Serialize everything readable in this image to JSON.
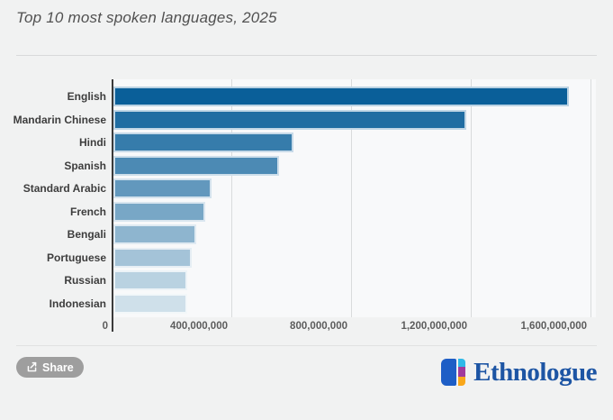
{
  "header": {
    "title": "Top 10 most spoken languages, 2025"
  },
  "share": {
    "label": "Share",
    "icon": "share-export-icon",
    "background": "#9e9e9e"
  },
  "brand": {
    "name": "Ethnologue",
    "wordmark_color": "#1d55a4",
    "icon": "ethnologue-book-icon",
    "icon_colors": {
      "book_blue": "#1e5ec6",
      "cyan": "#2fb9e8",
      "purple": "#a13a9c",
      "yellow": "#f9a71b"
    }
  },
  "chart_data": {
    "type": "bar",
    "orientation": "horizontal",
    "title": "Top 10 most spoken languages, 2025",
    "xlabel": "",
    "ylabel": "",
    "legend": false,
    "grid": true,
    "xlim": [
      0,
      1617000000
    ],
    "categories": [
      "English",
      "Mandarin Chinese",
      "Hindi",
      "Spanish",
      "Standard Arabic",
      "French",
      "Bengali",
      "Portuguese",
      "Russian",
      "Indonesian"
    ],
    "values": [
      1528000000,
      1184000000,
      609000000,
      558000000,
      335000000,
      312000000,
      284000000,
      267000000,
      253000000,
      252000000
    ],
    "bar_colors": [
      "#0a5f99",
      "#206da2",
      "#367cab",
      "#4c8ab4",
      "#6298bd",
      "#78a7c6",
      "#8eb5cf",
      "#a4c3d8",
      "#b9d2e1",
      "#cfe0ea"
    ],
    "x_ticks": [
      {
        "label": "0",
        "value": 0
      },
      {
        "label": "400,000,000",
        "value": 400000000
      },
      {
        "label": "800,000,000",
        "value": 800000000
      },
      {
        "label": "1,200,000,000",
        "value": 1200000000
      },
      {
        "label": "1,600,000,000",
        "value": 1600000000
      }
    ]
  }
}
